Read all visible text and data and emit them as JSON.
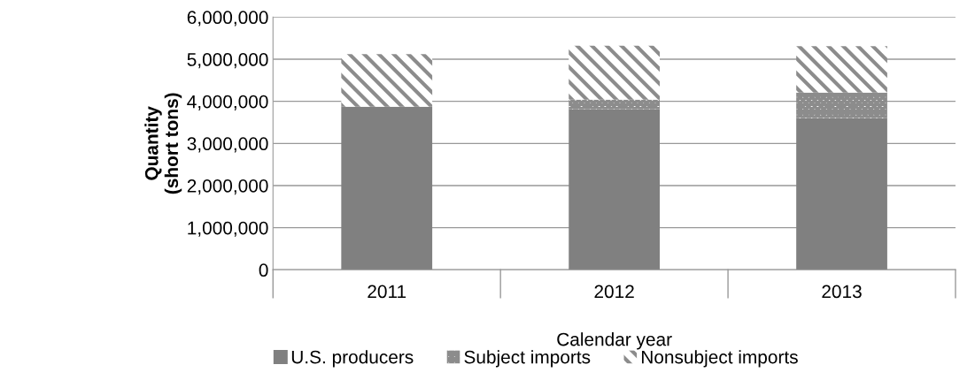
{
  "chart_data": {
    "type": "bar",
    "stacked": true,
    "xlabel": "Calendar year",
    "ylabel": "Quantity\n(short tons)",
    "categories": [
      "2011",
      "2012",
      "2013"
    ],
    "series": [
      {
        "name": "U.S. producers",
        "color": "#808080",
        "values": [
          3870000,
          3810000,
          3600000
        ]
      },
      {
        "name": "Subject imports",
        "color": "#8c8c8c",
        "values": [
          0,
          230000,
          610000
        ]
      },
      {
        "name": "Nonsubject imports",
        "color": "#8c8c8c",
        "values": [
          1250000,
          1280000,
          1100000
        ]
      }
    ],
    "ylim": [
      0,
      6000000
    ],
    "yticks": [
      {
        "value": 0,
        "label": "0"
      },
      {
        "value": 1000000,
        "label": "1,000,000"
      },
      {
        "value": 2000000,
        "label": "2,000,000"
      },
      {
        "value": 3000000,
        "label": "3,000,000"
      },
      {
        "value": 4000000,
        "label": "4,000,000"
      },
      {
        "value": 5000000,
        "label": "5,000,000"
      },
      {
        "value": 6000000,
        "label": "6,000,000"
      }
    ],
    "grid": "y",
    "legend": "bottom"
  }
}
